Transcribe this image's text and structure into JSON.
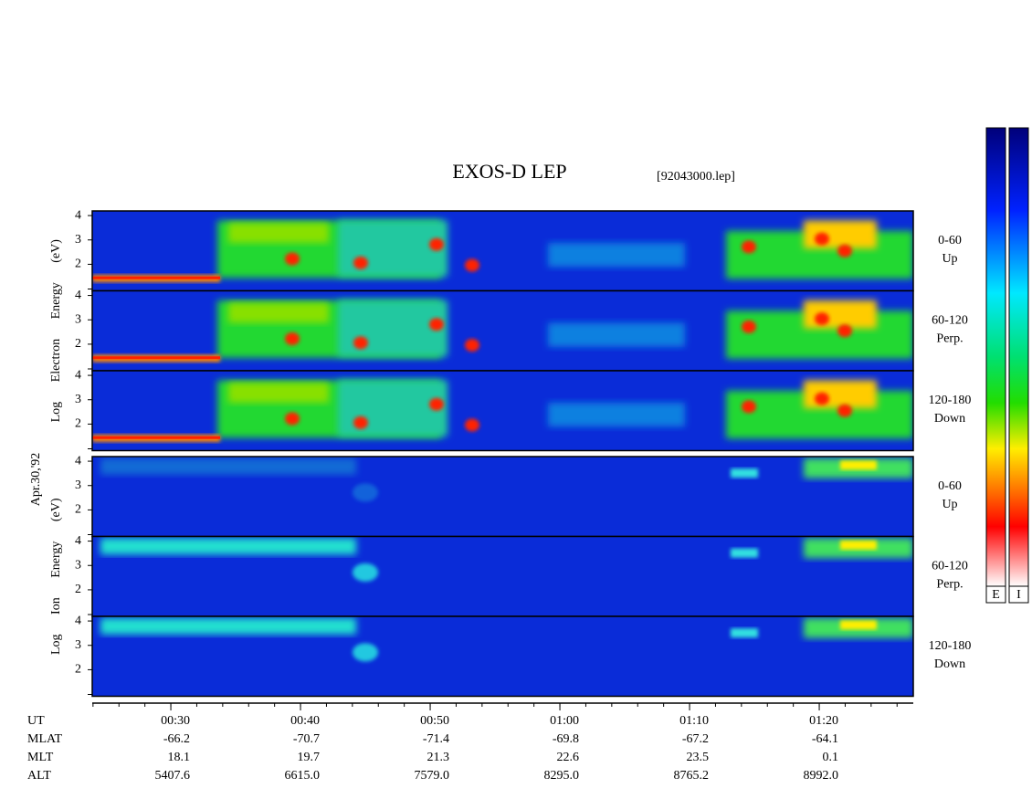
{
  "chart_data": {
    "type": "spectrogram",
    "title": "EXOS-D LEP",
    "subtitle": "[92043000.lep]",
    "date": "Apr.30,'92",
    "groups": [
      {
        "ylabel": "Log Electron Energy (eV)",
        "panels": [
          {
            "label": [
              "0-60",
              "Up"
            ]
          },
          {
            "label": [
              "60-120",
              "Perp."
            ]
          },
          {
            "label": [
              "120-180",
              "Down"
            ]
          }
        ]
      },
      {
        "ylabel": "Log Ion Energy (eV)",
        "panels": [
          {
            "label": [
              "0-60",
              "Up"
            ]
          },
          {
            "label": [
              "60-120",
              "Perp."
            ]
          },
          {
            "label": [
              "120-180",
              "Down"
            ]
          }
        ]
      }
    ],
    "ylim": [
      0.91,
      4.19
    ],
    "yticks": [
      2,
      3,
      4
    ],
    "xlim": [
      23.94,
      87.25
    ],
    "xlabel": "UT",
    "xticks": [
      {
        "value": 30,
        "label": "00:30"
      },
      {
        "value": 40,
        "label": "00:40"
      },
      {
        "value": 50,
        "label": "00:50"
      },
      {
        "value": 60,
        "label": "01:00"
      },
      {
        "value": 70,
        "label": "01:10"
      },
      {
        "value": 80,
        "label": "01:20"
      }
    ],
    "colorbar_labels": [
      "E",
      "I"
    ],
    "ephemeris": [
      {
        "name": "MLAT",
        "values": [
          "-66.2",
          "-70.7",
          "-71.4",
          "-69.8",
          "-67.2",
          "-64.1"
        ]
      },
      {
        "name": "MLT",
        "values": [
          "18.1",
          "19.7",
          "21.3",
          "22.6",
          "23.5",
          "0.1"
        ]
      },
      {
        "name": "ALT",
        "values": [
          "5407.6",
          "6615.0",
          "7579.0",
          "8295.0",
          "8765.2",
          "8992.0"
        ]
      }
    ]
  }
}
